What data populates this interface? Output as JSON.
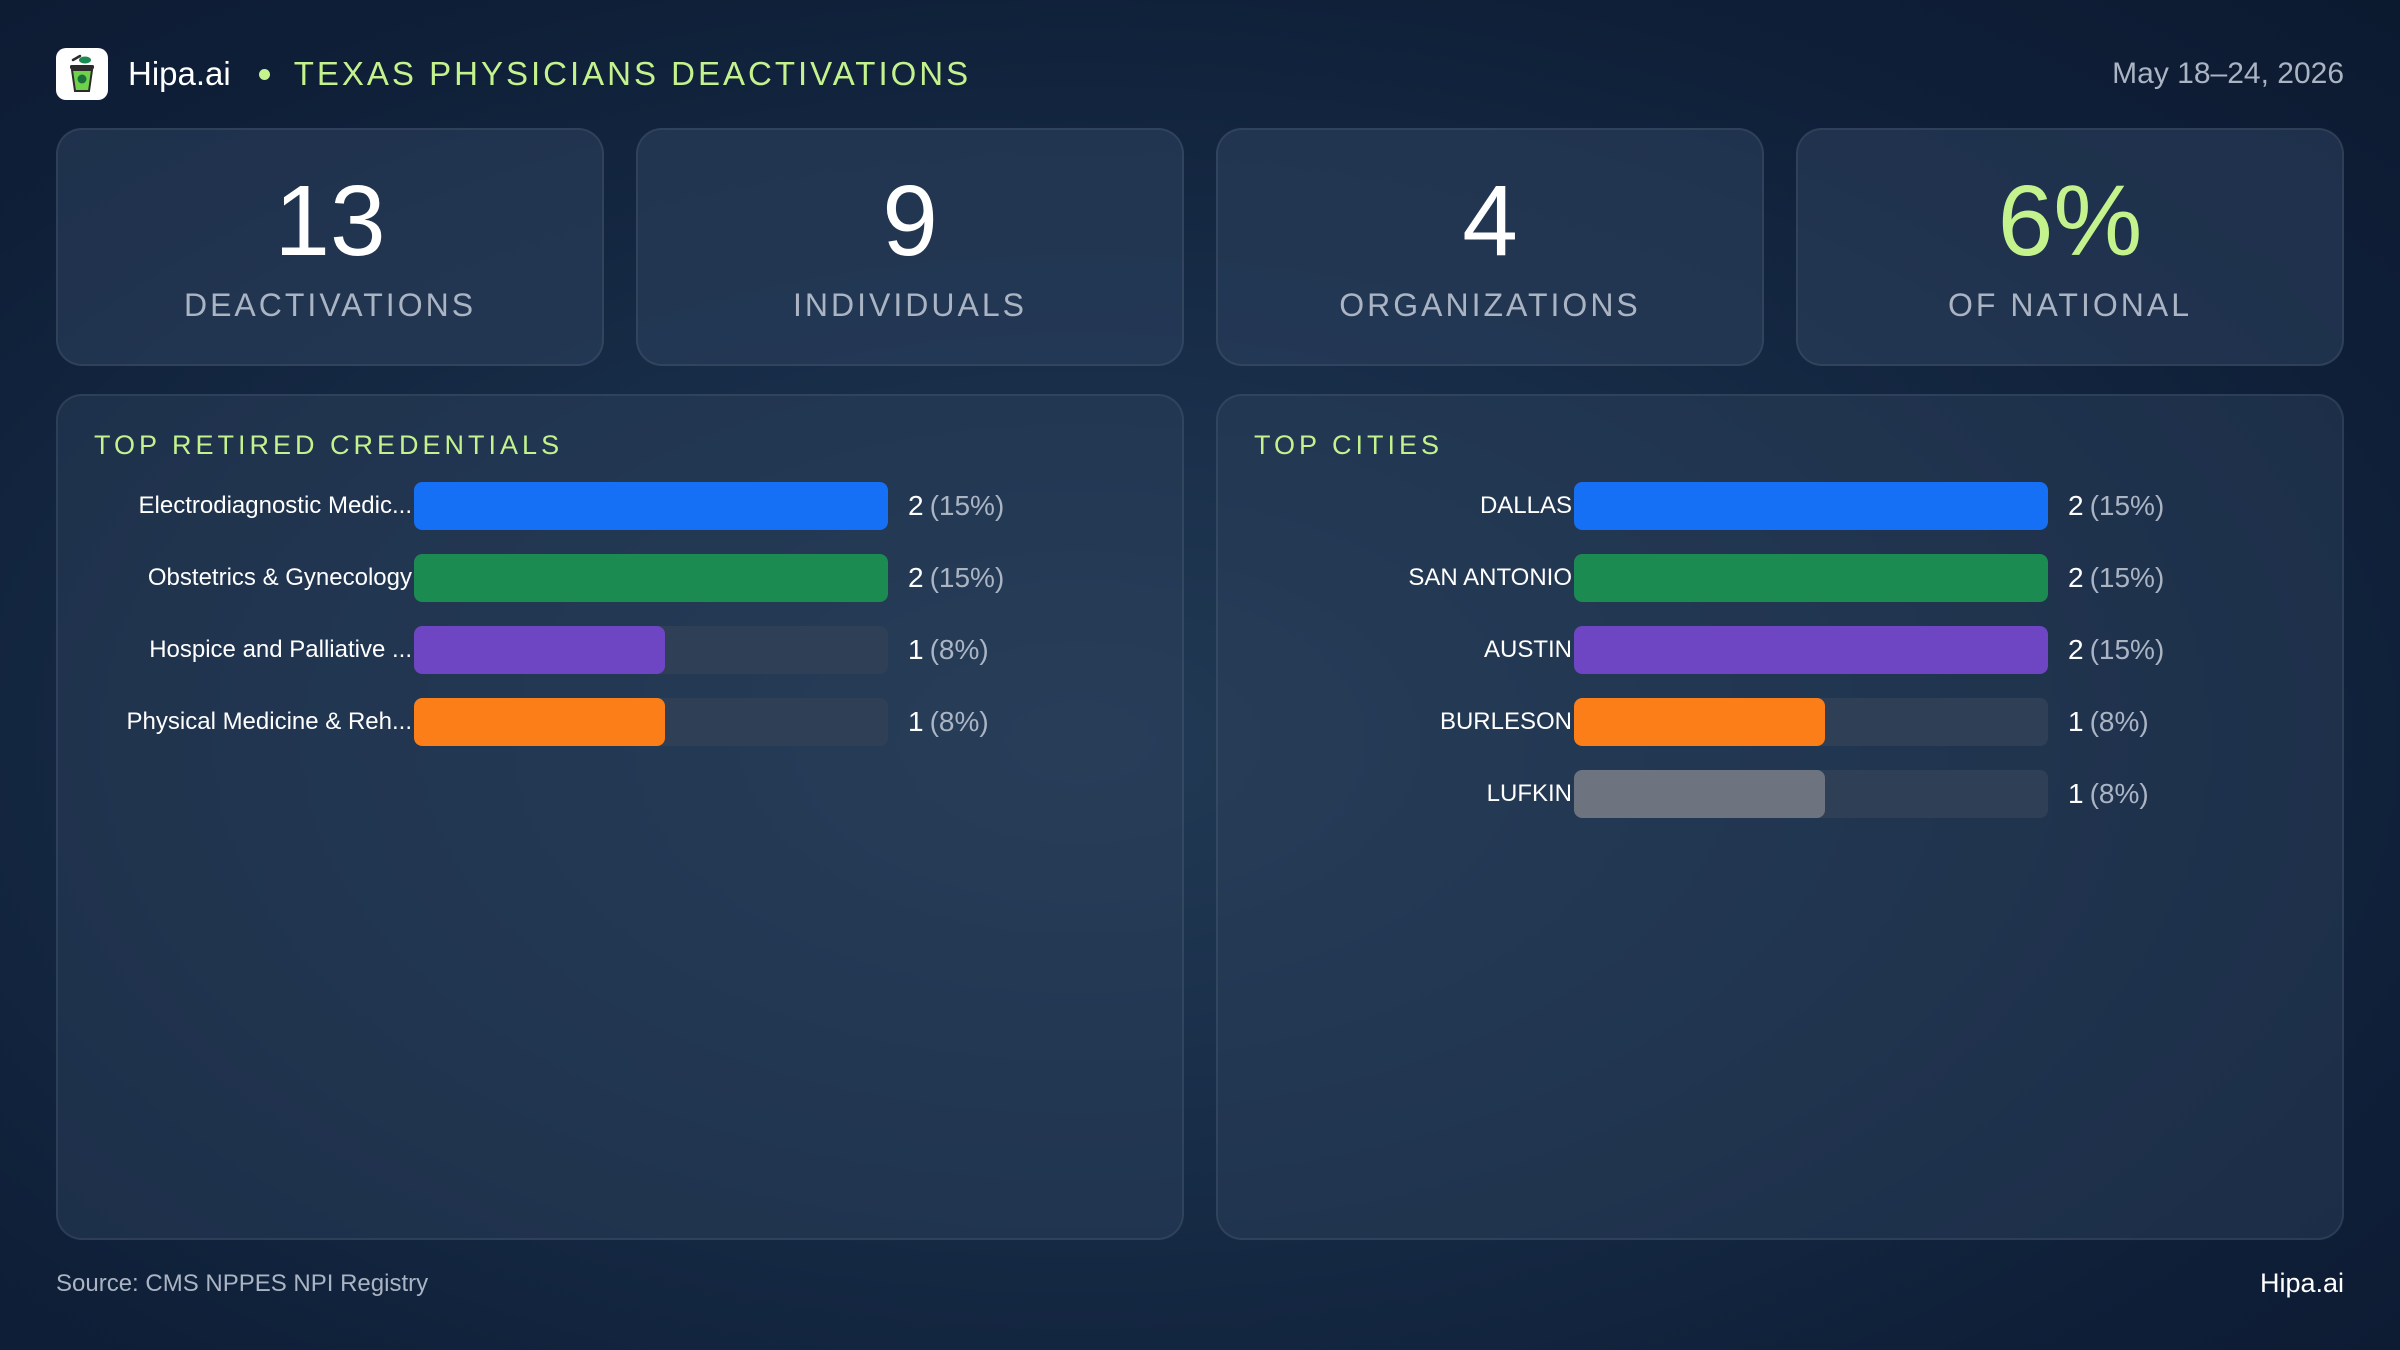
{
  "header": {
    "brand": "Hipa.ai",
    "title": "TEXAS PHYSICIANS DEACTIVATIONS",
    "date_range": "May 18–24, 2026",
    "logo_icon": "cup-leaf-icon"
  },
  "kpis": [
    {
      "value": "13",
      "label": "DEACTIVATIONS"
    },
    {
      "value": "9",
      "label": "INDIVIDUALS"
    },
    {
      "value": "4",
      "label": "ORGANIZATIONS"
    },
    {
      "value": "6%",
      "label": "OF NATIONAL"
    }
  ],
  "chart_data": [
    {
      "type": "bar",
      "orientation": "horizontal",
      "title": "TOP RETIRED CREDENTIALS",
      "categories": [
        "Electrodiagnostic Medic...",
        "Obstetrics & Gynecology",
        "Hospice and Palliative ...",
        "Physical Medicine & Reh..."
      ],
      "values": [
        2,
        2,
        1,
        1
      ],
      "labels": [
        "(15%)",
        "(15%)",
        "(8%)",
        "(8%)"
      ],
      "max": 2,
      "colors": [
        "#1570f6",
        "#1b8b52",
        "#6e45c2",
        "#fb7e18"
      ]
    },
    {
      "type": "bar",
      "orientation": "horizontal",
      "title": "TOP CITIES",
      "categories": [
        "DALLAS",
        "SAN ANTONIO",
        "AUSTIN",
        "BURLESON",
        "LUFKIN"
      ],
      "values": [
        2,
        2,
        2,
        1,
        1
      ],
      "labels": [
        "(15%)",
        "(15%)",
        "(15%)",
        "(8%)",
        "(8%)"
      ],
      "max": 2,
      "colors": [
        "#1570f6",
        "#1b8b52",
        "#6e45c2",
        "#fb7e18",
        "#6d747f"
      ]
    }
  ],
  "footer": {
    "source": "Source: CMS NPPES NPI Registry",
    "brand": "Hipa.ai"
  },
  "colors": {
    "accent": "#c4f28d",
    "muted": "#aab4c3",
    "track": "#2e3f56"
  }
}
